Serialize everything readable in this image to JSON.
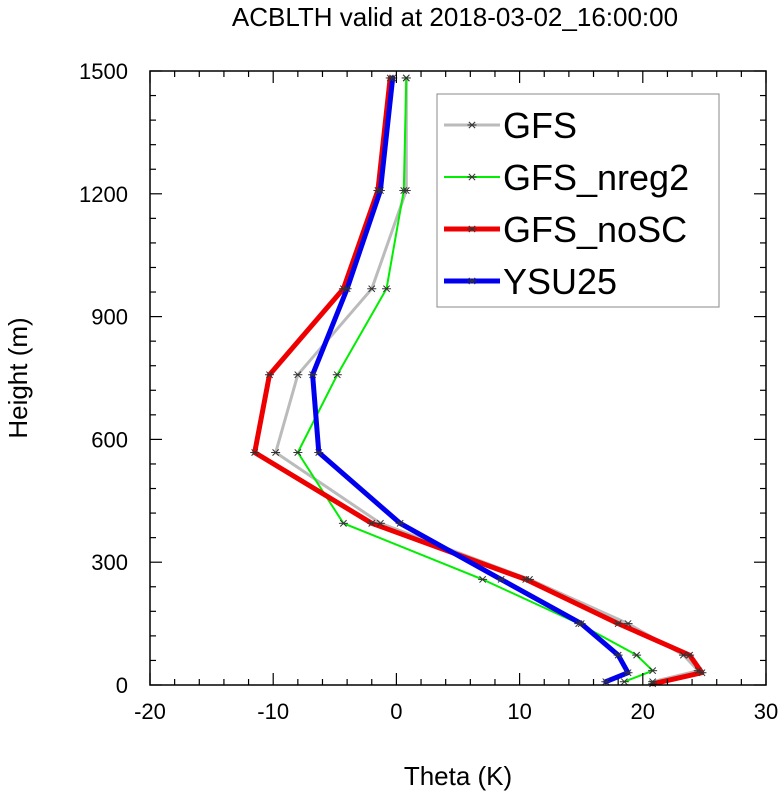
{
  "chart_data": {
    "type": "line",
    "title": "ACBLTH valid at 2018-03-02_16:00:00",
    "xlabel": "Theta (K)",
    "ylabel": "Height (m)",
    "xlim": [
      -20,
      30
    ],
    "ylim": [
      0,
      1500
    ],
    "xticks": [
      -20,
      -10,
      0,
      10,
      20,
      30
    ],
    "yticks": [
      0,
      300,
      600,
      900,
      1200,
      1500
    ],
    "grid": false,
    "legend_position": "top-right",
    "marker": "asterisk",
    "series": [
      {
        "name": "GFS",
        "color": "#bbbbbb",
        "width": 3,
        "points": [
          [
            20.8,
            8
          ],
          [
            24.5,
            35
          ],
          [
            23.3,
            73
          ],
          [
            18.8,
            150
          ],
          [
            10.8,
            258
          ],
          [
            -1.3,
            395
          ],
          [
            -9.8,
            568
          ],
          [
            -8.0,
            758
          ],
          [
            -2.0,
            968
          ],
          [
            0.8,
            1208
          ],
          [
            0.8,
            1483
          ]
        ]
      },
      {
        "name": "GFS_nreg2",
        "color": "#00ee00",
        "width": 2,
        "points": [
          [
            18.5,
            8
          ],
          [
            20.8,
            35
          ],
          [
            19.5,
            73
          ],
          [
            14.8,
            150
          ],
          [
            7.0,
            258
          ],
          [
            -4.3,
            395
          ],
          [
            -8.0,
            568
          ],
          [
            -4.8,
            758
          ],
          [
            -0.8,
            968
          ],
          [
            0.6,
            1208
          ],
          [
            0.8,
            1483
          ]
        ]
      },
      {
        "name": "GFS_noSC",
        "color": "#ee0000",
        "width": 5,
        "points": [
          [
            20.8,
            3
          ],
          [
            24.8,
            30
          ],
          [
            23.8,
            73
          ],
          [
            18.0,
            150
          ],
          [
            10.5,
            258
          ],
          [
            -2.0,
            395
          ],
          [
            -11.5,
            568
          ],
          [
            -10.3,
            758
          ],
          [
            -4.3,
            968
          ],
          [
            -1.5,
            1208
          ],
          [
            -0.5,
            1483
          ]
        ]
      },
      {
        "name": "YSU25",
        "color": "#0000ee",
        "width": 5,
        "points": [
          [
            17.0,
            8
          ],
          [
            18.8,
            30
          ],
          [
            18.0,
            73
          ],
          [
            15.0,
            150
          ],
          [
            8.5,
            258
          ],
          [
            0.3,
            395
          ],
          [
            -6.3,
            568
          ],
          [
            -6.8,
            758
          ],
          [
            -4.0,
            968
          ],
          [
            -1.3,
            1208
          ],
          [
            -0.3,
            1483
          ]
        ]
      }
    ]
  }
}
